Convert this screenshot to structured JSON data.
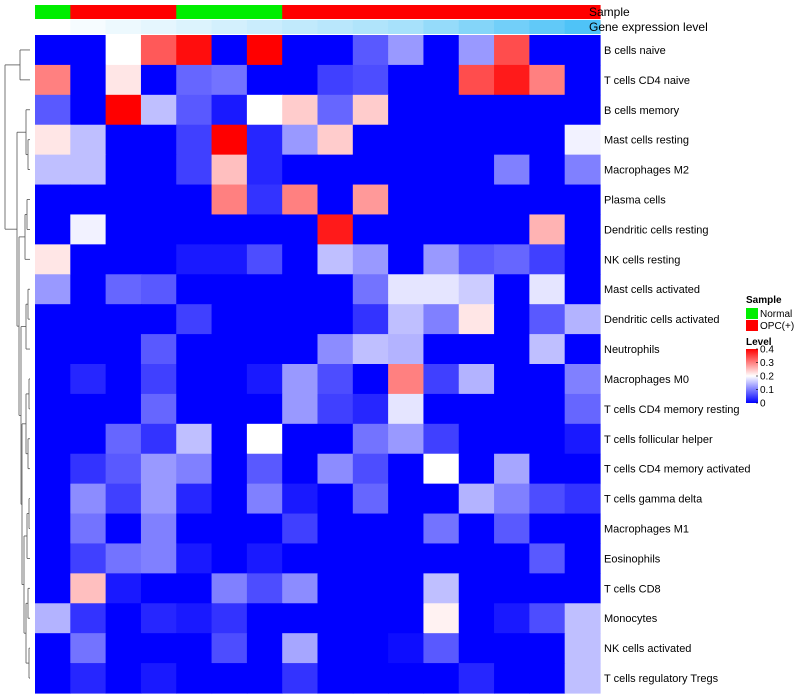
{
  "chart_data": {
    "type": "heatmap",
    "row_labels": [
      "B cells naive",
      "T cells CD4 naive",
      "B cells memory",
      "Mast cells resting",
      "Macrophages M2",
      "Plasma cells",
      "Dendritic cells resting",
      "NK cells resting",
      "Mast cells activated",
      "Dendritic cells activated",
      "Neutrophils",
      "Macrophages M0",
      "T cells CD4 memory resting",
      "T cells follicular helper",
      "T cells CD4 memory activated",
      "T cells gamma delta",
      "Macrophages M1",
      "Eosinophils",
      "T cells CD8",
      "Monocytes",
      "NK cells activated",
      "T cells regulatory  Tregs"
    ],
    "column_annotations": {
      "sample_label": "Sample",
      "expression_label": "Gene expression level",
      "sample": [
        "Normal",
        "OPC(+)",
        "OPC(+)",
        "OPC(+)",
        "Normal",
        "Normal",
        "Normal",
        "OPC(+)",
        "OPC(+)",
        "OPC(+)",
        "OPC(+)",
        "OPC(+)",
        "OPC(+)",
        "OPC(+)",
        "OPC(+)",
        "OPC(+)"
      ],
      "expression_level": [
        0.0,
        0.05,
        0.1,
        0.15,
        0.2,
        0.25,
        0.3,
        0.35,
        0.4,
        0.45,
        0.5,
        0.6,
        0.7,
        0.8,
        0.9,
        1.0
      ]
    },
    "values": [
      [
        0,
        0,
        0.2,
        0.33,
        0.39,
        0,
        0.4,
        0,
        0,
        0.07,
        0.12,
        0,
        0.12,
        0.34,
        0,
        0
      ],
      [
        0.3,
        0,
        0.22,
        0,
        0.08,
        0.09,
        0,
        0,
        0.05,
        0.06,
        0,
        0,
        0.34,
        0.38,
        0.3,
        0
      ],
      [
        0.07,
        0,
        0.4,
        0.15,
        0.07,
        0.02,
        0.2,
        0.24,
        0.08,
        0.24,
        0,
        0,
        0,
        0,
        0,
        0
      ],
      [
        0.22,
        0.15,
        0,
        0,
        0.05,
        0.4,
        0.03,
        0.12,
        0.24,
        0,
        0,
        0,
        0,
        0,
        0,
        0.19
      ],
      [
        0.15,
        0.15,
        0,
        0,
        0.05,
        0.25,
        0.03,
        0,
        0,
        0,
        0,
        0,
        0,
        0.1,
        0,
        0.1
      ],
      [
        0,
        0,
        0,
        0,
        0,
        0.3,
        0.04,
        0.3,
        0,
        0.28,
        0,
        0,
        0,
        0,
        0,
        0
      ],
      [
        0,
        0.19,
        0,
        0,
        0,
        0,
        0,
        0,
        0.38,
        0,
        0,
        0,
        0,
        0,
        0.26,
        0
      ],
      [
        0.22,
        0,
        0,
        0,
        0.02,
        0.02,
        0.06,
        0,
        0.15,
        0.12,
        0,
        0.12,
        0.07,
        0.08,
        0.05,
        0
      ],
      [
        0.12,
        0,
        0.08,
        0.07,
        0,
        0,
        0,
        0,
        0,
        0.09,
        0.18,
        0.18,
        0.16,
        0,
        0.18,
        0
      ],
      [
        0,
        0,
        0,
        0,
        0.05,
        0,
        0,
        0,
        0,
        0.04,
        0.15,
        0.1,
        0.22,
        0,
        0.07,
        0.14
      ],
      [
        0,
        0,
        0,
        0.07,
        0,
        0,
        0,
        0,
        0.11,
        0.15,
        0.14,
        0,
        0,
        0,
        0.15,
        0
      ],
      [
        0,
        0.03,
        0,
        0.05,
        0,
        0,
        0.02,
        0.12,
        0.06,
        0,
        0.3,
        0.05,
        0.14,
        0,
        0,
        0.1
      ],
      [
        0,
        0,
        0,
        0.08,
        0,
        0,
        0,
        0.12,
        0.05,
        0.03,
        0.18,
        0,
        0,
        0,
        0,
        0.08
      ],
      [
        0,
        0,
        0.08,
        0.04,
        0.15,
        0,
        0.2,
        0,
        0,
        0.09,
        0.12,
        0.05,
        0,
        0,
        0,
        0.02
      ],
      [
        0,
        0.04,
        0.07,
        0.12,
        0.1,
        0,
        0.07,
        0,
        0.11,
        0.06,
        0,
        0.2,
        0,
        0.13,
        0,
        0
      ],
      [
        0,
        0.11,
        0.05,
        0.12,
        0.03,
        0,
        0.1,
        0.02,
        0,
        0.08,
        0,
        0,
        0.14,
        0.1,
        0.06,
        0.04
      ],
      [
        0,
        0.09,
        0,
        0.1,
        0,
        0,
        0,
        0.05,
        0,
        0,
        0,
        0.09,
        0,
        0.07,
        0,
        0
      ],
      [
        0,
        0.05,
        0.09,
        0.1,
        0.02,
        0,
        0.02,
        0,
        0,
        0,
        0,
        0,
        0,
        0,
        0.07,
        0
      ],
      [
        0,
        0.25,
        0.02,
        0,
        0,
        0.1,
        0.06,
        0.11,
        0,
        0,
        0,
        0.15,
        0,
        0,
        0,
        0
      ],
      [
        0.14,
        0.04,
        0,
        0.03,
        0.02,
        0.04,
        0,
        0,
        0,
        0,
        0,
        0.21,
        0,
        0.02,
        0.06,
        0.15
      ],
      [
        0,
        0.09,
        0,
        0,
        0,
        0.06,
        0,
        0.13,
        0,
        0,
        0.01,
        0.07,
        0,
        0,
        0,
        0.15
      ],
      [
        0,
        0.03,
        0,
        0.02,
        0,
        0,
        0,
        0.04,
        0,
        0,
        0,
        0,
        0.03,
        0,
        0,
        0.15
      ]
    ],
    "legend": {
      "sample_title": "Sample",
      "sample_entries": [
        {
          "name": "Normal",
          "color": "#00ee00"
        },
        {
          "name": "OPC(+)",
          "color": "#ff0000"
        }
      ],
      "level_title": "Level",
      "level_ticks": [
        "0",
        "0.1",
        "0.2",
        "0.3",
        "0.4"
      ],
      "level_range": [
        0,
        0.4
      ],
      "placement": "right"
    },
    "colors": {
      "low": "#0000ff",
      "mid": "#ffffff",
      "high": "#ff0000",
      "expression_low": "#ffffff",
      "expression_high": "#4fc3f7"
    }
  }
}
